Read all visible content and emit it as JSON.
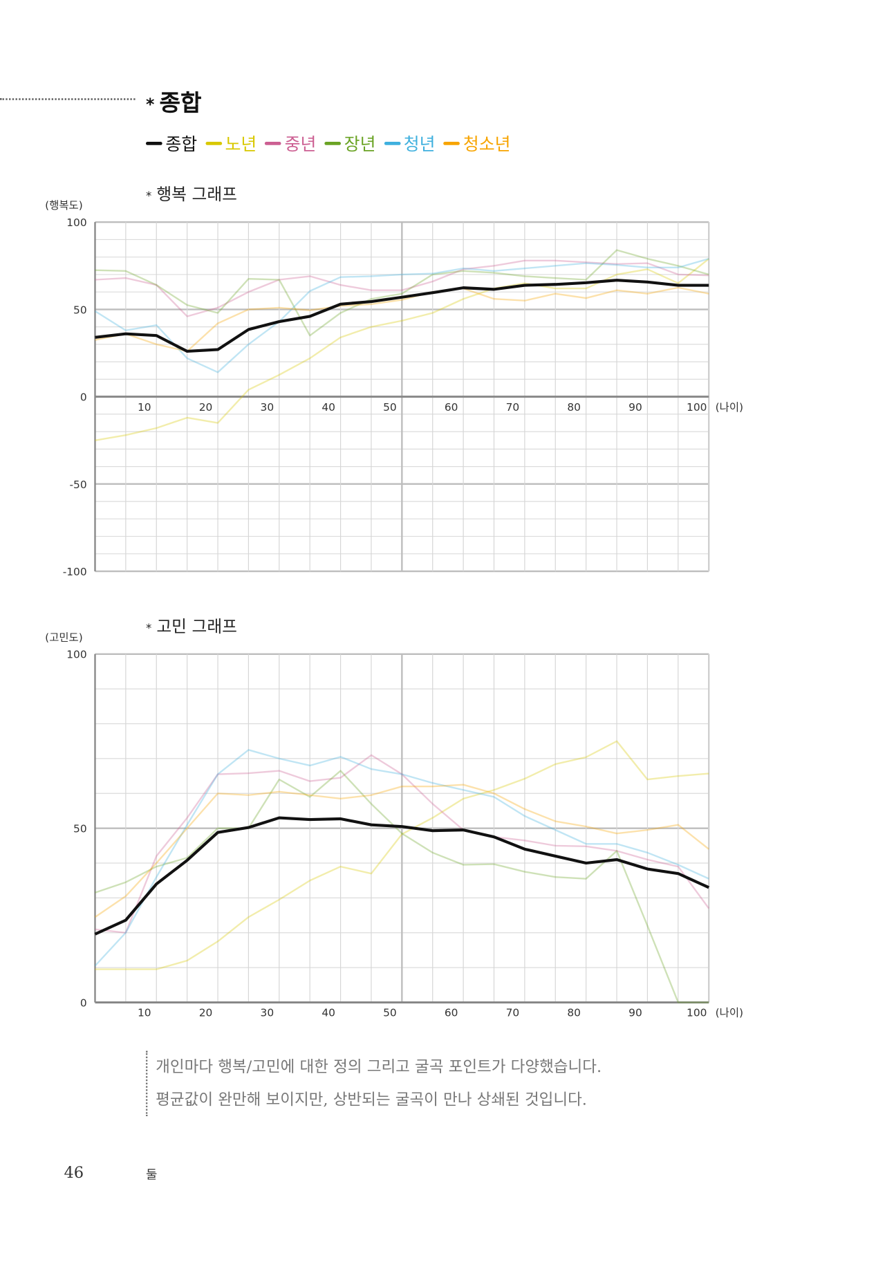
{
  "header": {
    "star": "*",
    "title": "종합"
  },
  "legend": [
    {
      "label": "종합",
      "color": "#111111"
    },
    {
      "label": "노년",
      "color": "#d8c800"
    },
    {
      "label": "중년",
      "color": "#cc5f92"
    },
    {
      "label": "장년",
      "color": "#6aa324"
    },
    {
      "label": "청년",
      "color": "#3fb0de"
    },
    {
      "label": "청소년",
      "color": "#f7a400"
    }
  ],
  "chart_data": [
    {
      "type": "line",
      "title": "행복 그래프",
      "ylabel": "(행복도)",
      "xlabel": "(나이)",
      "ylim": [
        -100,
        100
      ],
      "yticks": [
        "100",
        "50",
        "0",
        "-50",
        "-100"
      ],
      "ytick_values": [
        100,
        50,
        0,
        -50,
        -100
      ],
      "xticks": [
        "10",
        "20",
        "30",
        "40",
        "50",
        "60",
        "70",
        "80",
        "90",
        "100"
      ],
      "grid": true,
      "series": [
        {
          "name": "노년",
          "values": [
            -25,
            -22,
            -18,
            -12,
            -15,
            4,
            12.5,
            22,
            34,
            40,
            43.5,
            48,
            56,
            62,
            65,
            62,
            62,
            70,
            73,
            65,
            79
          ]
        },
        {
          "name": "중년",
          "values": [
            67,
            68,
            64,
            46,
            51,
            60,
            67,
            69,
            64,
            61,
            61,
            66,
            73,
            75,
            78,
            78,
            77,
            76,
            76.5,
            70,
            69.5
          ]
        },
        {
          "name": "장년",
          "values": [
            72.5,
            72,
            64,
            52.5,
            48,
            67.5,
            67,
            35,
            48,
            56,
            59,
            70,
            72,
            71,
            69,
            68,
            67,
            84,
            79,
            75,
            70
          ]
        },
        {
          "name": "청년",
          "values": [
            49,
            38,
            41,
            22,
            14,
            30,
            43,
            60.5,
            68.5,
            69,
            70,
            70.5,
            73.5,
            72,
            73.5,
            75,
            76.5,
            75.5,
            74,
            74,
            79
          ]
        },
        {
          "name": "청소년",
          "values": [
            32.5,
            36,
            30,
            26,
            42,
            50,
            51,
            49.5,
            52,
            53,
            55.5,
            60,
            62,
            56,
            55,
            59,
            56.5,
            61,
            59,
            62.5,
            59
          ]
        },
        {
          "name": "종합",
          "values": [
            34,
            36,
            35,
            26,
            27,
            38.5,
            43,
            46,
            53,
            54.5,
            57,
            59.6,
            62.4,
            61.5,
            63.8,
            64.3,
            65.3,
            66.7,
            65.7,
            63.8,
            63.8
          ]
        }
      ]
    },
    {
      "type": "line",
      "title": "고민 그래프",
      "ylabel": "(고민도)",
      "xlabel": "(나이)",
      "ylim": [
        0,
        100
      ],
      "yticks": [
        "100",
        "50",
        "0"
      ],
      "ytick_values": [
        100,
        50,
        0
      ],
      "xticks": [
        "10",
        "20",
        "30",
        "40",
        "50",
        "60",
        "70",
        "80",
        "90",
        "100"
      ],
      "grid": true,
      "series": [
        {
          "name": "노년",
          "values": [
            9.5,
            9.5,
            9.5,
            12,
            17.5,
            24.5,
            29.5,
            35,
            39,
            37,
            48.3,
            53,
            58.5,
            61,
            64.2,
            68.4,
            70.4,
            75,
            64,
            65,
            65.7
          ]
        },
        {
          "name": "중년",
          "values": [
            21,
            20,
            42,
            53,
            65.5,
            65.8,
            66.5,
            63.5,
            64.5,
            71,
            65.5,
            57,
            49.5,
            47.5,
            46.5,
            45,
            44.8,
            43.5,
            41,
            39,
            27
          ]
        },
        {
          "name": "장년",
          "values": [
            31.5,
            34.5,
            39,
            41.5,
            50,
            50,
            64,
            59,
            66.5,
            57,
            48.5,
            43,
            39.5,
            39.7,
            37.5,
            36,
            35.5,
            43.5,
            22,
            0,
            0
          ]
        },
        {
          "name": "청년",
          "values": [
            10.5,
            20,
            36,
            51,
            65.5,
            72.5,
            70,
            68,
            70.5,
            67,
            65.5,
            63,
            61,
            59,
            53.5,
            49.5,
            45.5,
            45.5,
            43,
            39.5,
            35.5
          ]
        },
        {
          "name": "청소년",
          "values": [
            24.5,
            30.5,
            40,
            50,
            60,
            59.5,
            60.5,
            59.5,
            58.5,
            59.5,
            62,
            62,
            62.5,
            60,
            55.5,
            52,
            50.5,
            48.5,
            49.5,
            51,
            44
          ]
        },
        {
          "name": "종합",
          "values": [
            19.6,
            23.6,
            34,
            40.8,
            48.8,
            50.2,
            53,
            52.5,
            52.7,
            51,
            50.5,
            49.3,
            49.5,
            47.5,
            44,
            42,
            40,
            41,
            38.3,
            37,
            33
          ]
        }
      ]
    }
  ],
  "note": {
    "line1": "개인마다 행복/고민에 대한 정의 그리고 굴곡 포인트가 다양했습니다.",
    "line2": "평균값이 완만해 보이지만, 상반되는 굴곡이 만나 상쇄된 것입니다."
  },
  "footer": {
    "page_number": "46",
    "chapter": "둘"
  }
}
